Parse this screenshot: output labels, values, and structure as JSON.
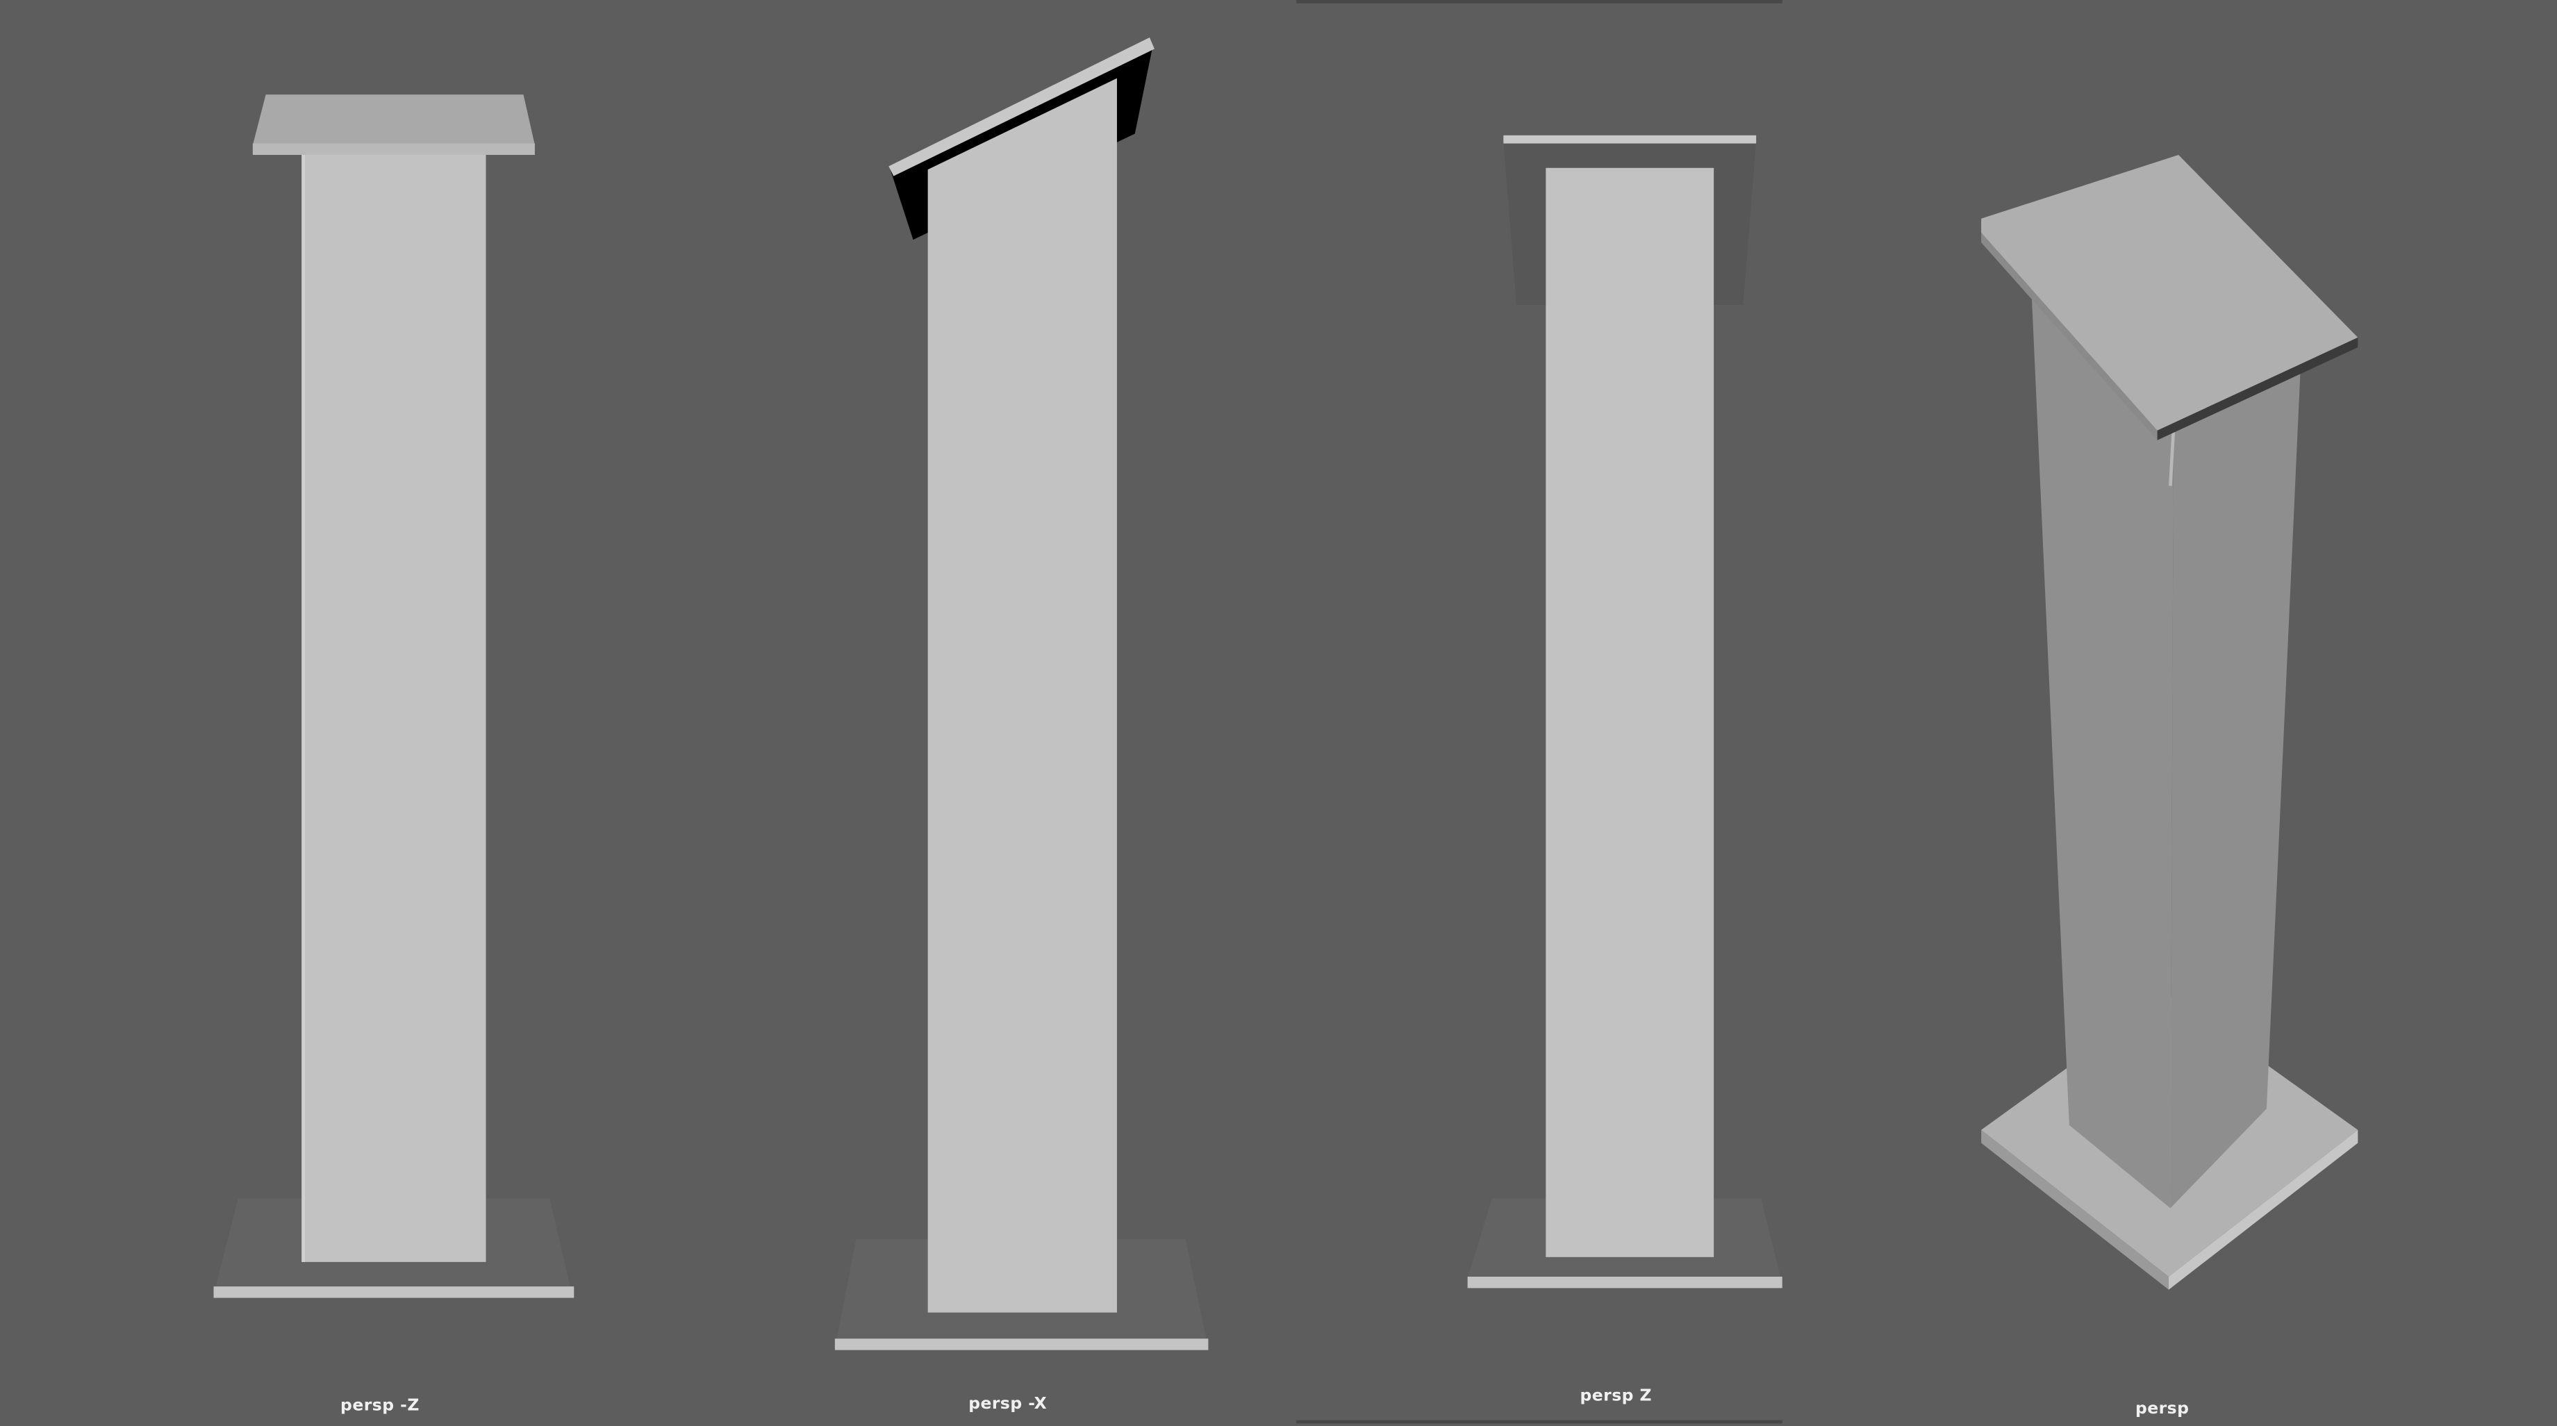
{
  "app": {
    "background": "#5d5d5d"
  },
  "viewports": [
    {
      "camera": "persp -Z",
      "label": "persp -Z"
    },
    {
      "camera": "persp -X",
      "label": "persp -X"
    },
    {
      "camera": "persp Z",
      "label": "persp Z"
    },
    {
      "camera": "persp",
      "label": "persp"
    }
  ],
  "colors": {
    "viewport_background": "#5d5d5d",
    "model_light": "#c2c2c2",
    "model_mid": "#a9a9a9",
    "model_shadow": "#8f8f8f",
    "base_shadow": "#636363",
    "label_text": "#f0f0f0"
  }
}
